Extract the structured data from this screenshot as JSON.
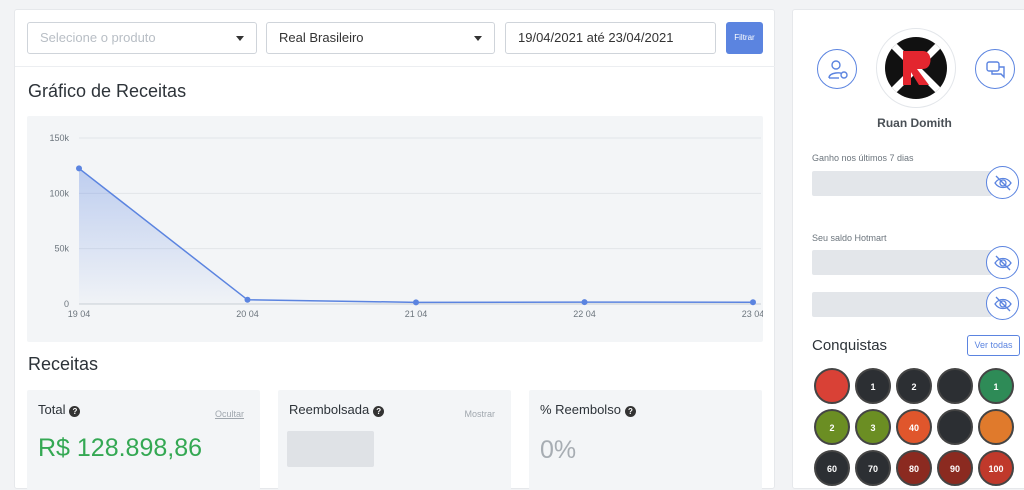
{
  "filters": {
    "product_placeholder": "Selecione o produto",
    "currency": "Real Brasileiro",
    "date_range": "19/04/2021 até 23/04/2021",
    "filter_button": "Filtrar"
  },
  "chart_section": {
    "title": "Gráfico de Receitas"
  },
  "chart_data": {
    "type": "area",
    "title": "Gráfico de Receitas",
    "categories": [
      "19 04",
      "20 04",
      "21 04",
      "22 04",
      "23 04"
    ],
    "values": [
      122500,
      3800,
      1500,
      1700,
      1600
    ],
    "y_ticks": [
      "0",
      "50k",
      "100k",
      "150k"
    ],
    "ylim": [
      0,
      150000
    ],
    "grid": true,
    "color": "#5b84e0"
  },
  "revenue": {
    "title": "Receitas",
    "cards": [
      {
        "label": "Total",
        "toggle": "Ocultar",
        "value": "R$ 128.898,86"
      },
      {
        "label": "Reembolsada",
        "toggle": "Mostrar"
      },
      {
        "label": "% Reembolso",
        "value": "0%"
      }
    ]
  },
  "profile": {
    "name": "Ruan Domith",
    "earned_label": "Ganho nos últimos 7 dias",
    "balance_label": "Seu saldo Hotmart"
  },
  "achievements": {
    "title": "Conquistas",
    "see_all": "Ver todas",
    "badges": [
      {
        "text": "",
        "color": "#d94136"
      },
      {
        "text": "1",
        "color": "#2c2f33"
      },
      {
        "text": "2",
        "color": "#2c2f33"
      },
      {
        "text": "",
        "color": "#2c2f33"
      },
      {
        "text": "1",
        "color": "#2e8b57"
      },
      {
        "text": "2",
        "color": "#6b8e23"
      },
      {
        "text": "3",
        "color": "#6b8e23"
      },
      {
        "text": "40",
        "color": "#e0562c"
      },
      {
        "text": "",
        "color": "#2c2f33"
      },
      {
        "text": "",
        "color": "#e07a2c"
      },
      {
        "text": "60",
        "color": "#2c2f33"
      },
      {
        "text": "70",
        "color": "#2c2f33"
      },
      {
        "text": "80",
        "color": "#8b2a20"
      },
      {
        "text": "90",
        "color": "#8b2a20"
      },
      {
        "text": "100",
        "color": "#c0392b"
      }
    ]
  },
  "colors": {
    "accent": "#5b84e0",
    "success": "#34a853"
  }
}
